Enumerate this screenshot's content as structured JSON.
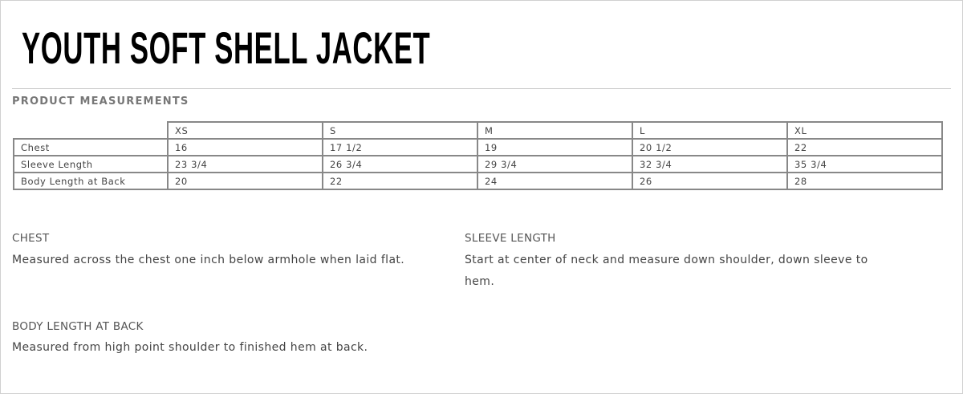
{
  "title": "YOUTH SOFT SHELL JACKET",
  "section_title": "PRODUCT MEASUREMENTS",
  "table": {
    "sizes": [
      "XS",
      "S",
      "M",
      "L",
      "XL"
    ],
    "rows": [
      {
        "label": "Chest",
        "values": [
          "16",
          "17 1/2",
          "19",
          "20 1/2",
          "22"
        ]
      },
      {
        "label": "Sleeve Length",
        "values": [
          "23 3/4",
          "26 3/4",
          "29 3/4",
          "32 3/4",
          "35 3/4"
        ]
      },
      {
        "label": "Body Length at Back",
        "values": [
          "20",
          "22",
          "24",
          "26",
          "28"
        ]
      }
    ]
  },
  "descriptions": [
    {
      "heading": "CHEST",
      "text": "Measured across the chest one inch below armhole when laid flat."
    },
    {
      "heading": "SLEEVE LENGTH",
      "text": "Start at center of neck and measure down shoulder, down sleeve to hem."
    },
    {
      "heading": "BODY LENGTH AT BACK",
      "text": "Measured from high point shoulder to finished hem at back."
    }
  ]
}
